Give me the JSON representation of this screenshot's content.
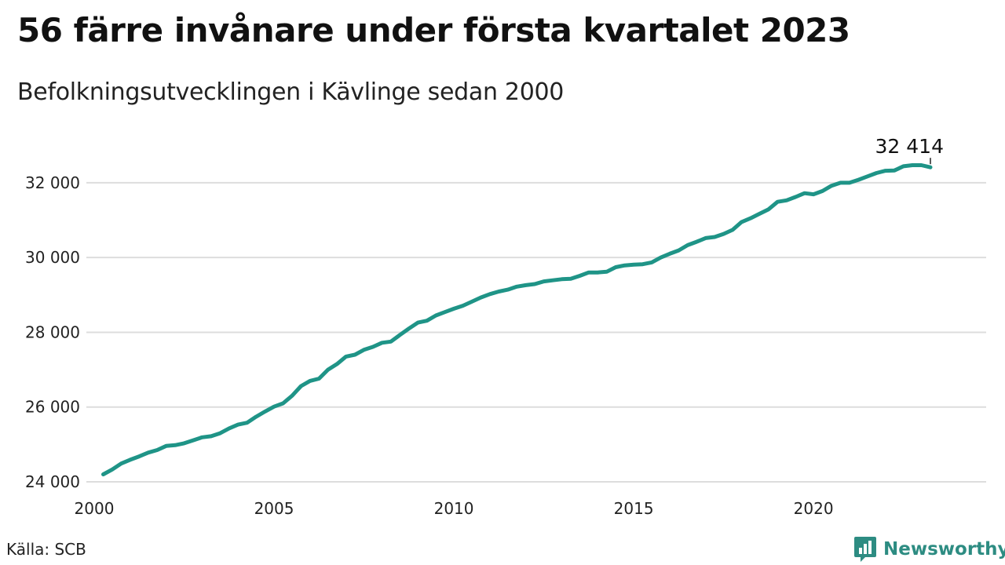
{
  "header": {
    "title": "56 färre invånare under första kvartalet 2023",
    "subtitle": "Befolkningsutvecklingen i Kävlinge sedan 2000"
  },
  "footer": {
    "source": "Källa: SCB",
    "brand": "Newsworthy",
    "brand_icon": "bar-chart-speech-bubble-icon"
  },
  "colors": {
    "line": "#1f9487",
    "grid": "#dddddd",
    "brand": "#2d8c82"
  },
  "chart_data": {
    "type": "line",
    "title": "56 färre invånare under första kvartalet 2023",
    "subtitle": "Befolkningsutvecklingen i Kävlinge sedan 2000",
    "xlabel": "",
    "ylabel": "",
    "xlim": [
      2000,
      2024.8
    ],
    "ylim": [
      24000,
      32900
    ],
    "x_ticks": [
      {
        "value": 2000,
        "label": "2000"
      },
      {
        "value": 2005,
        "label": "2005"
      },
      {
        "value": 2010,
        "label": "2010"
      },
      {
        "value": 2015,
        "label": "2015"
      },
      {
        "value": 2020,
        "label": "2020"
      }
    ],
    "y_ticks": [
      {
        "value": 24000,
        "label": "24 000"
      },
      {
        "value": 26000,
        "label": "26 000"
      },
      {
        "value": 28000,
        "label": "28 000"
      },
      {
        "value": 30000,
        "label": "30 000"
      },
      {
        "value": 32000,
        "label": "32 000"
      }
    ],
    "grid": "horizontal",
    "legend": "none",
    "end_label": "32 414",
    "series": [
      {
        "color": "#1f9487",
        "x": [
          2000.25,
          2000.5,
          2000.75,
          2001.0,
          2001.25,
          2001.5,
          2001.75,
          2002.0,
          2002.25,
          2002.5,
          2002.75,
          2003.0,
          2003.25,
          2003.5,
          2003.75,
          2004.0,
          2004.25,
          2004.5,
          2004.75,
          2005.0,
          2005.25,
          2005.5,
          2005.75,
          2006.0,
          2006.25,
          2006.5,
          2006.75,
          2007.0,
          2007.25,
          2007.5,
          2007.75,
          2008.0,
          2008.25,
          2008.5,
          2008.75,
          2009.0,
          2009.25,
          2009.5,
          2009.75,
          2010.0,
          2010.25,
          2010.5,
          2010.75,
          2011.0,
          2011.25,
          2011.5,
          2011.75,
          2012.0,
          2012.25,
          2012.5,
          2012.75,
          2013.0,
          2013.25,
          2013.5,
          2013.75,
          2014.0,
          2014.25,
          2014.5,
          2014.75,
          2015.0,
          2015.25,
          2015.5,
          2015.75,
          2016.0,
          2016.25,
          2016.5,
          2016.75,
          2017.0,
          2017.25,
          2017.5,
          2017.75,
          2018.0,
          2018.25,
          2018.5,
          2018.75,
          2019.0,
          2019.25,
          2019.5,
          2019.75,
          2020.0,
          2020.25,
          2020.5,
          2020.75,
          2021.0,
          2021.25,
          2021.5,
          2021.75,
          2022.0,
          2022.25,
          2022.5,
          2022.75,
          2023.0,
          2023.25
        ],
        "y": [
          24200,
          24330,
          24490,
          24590,
          24680,
          24780,
          24850,
          24960,
          24980,
          25030,
          25110,
          25190,
          25220,
          25300,
          25430,
          25530,
          25580,
          25740,
          25880,
          26010,
          26100,
          26300,
          26560,
          26700,
          26760,
          27000,
          27150,
          27350,
          27400,
          27530,
          27610,
          27720,
          27750,
          27930,
          28100,
          28260,
          28310,
          28450,
          28540,
          28630,
          28710,
          28820,
          28930,
          29020,
          29090,
          29140,
          29220,
          29260,
          29290,
          29360,
          29390,
          29420,
          29430,
          29510,
          29600,
          29600,
          29620,
          29740,
          29790,
          29810,
          29820,
          29870,
          30000,
          30100,
          30190,
          30330,
          30420,
          30520,
          30550,
          30630,
          30740,
          30950,
          31050,
          31170,
          31290,
          31490,
          31530,
          31620,
          31720,
          31690,
          31780,
          31920,
          32000,
          32000,
          32080,
          32170,
          32260,
          32320,
          32330,
          32440,
          32470,
          32470,
          32414
        ]
      }
    ]
  }
}
